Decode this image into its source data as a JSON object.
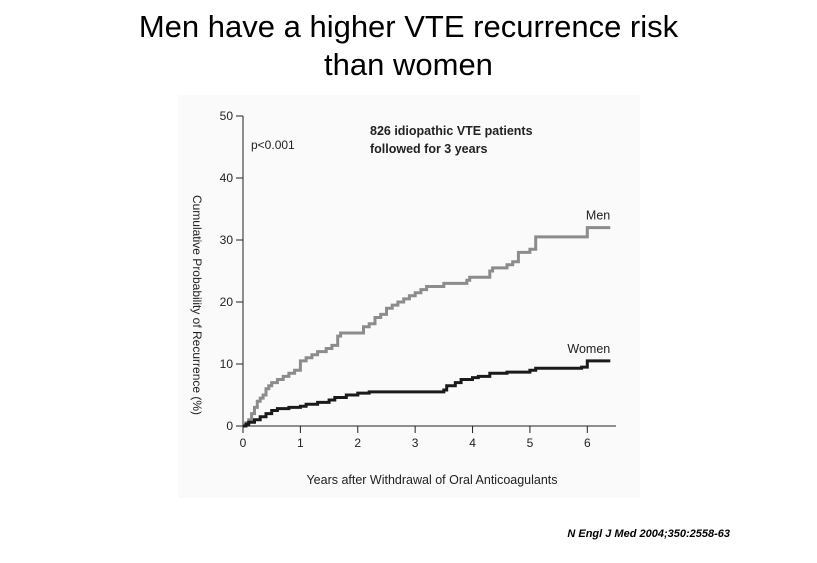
{
  "slide": {
    "title_line1": "Men have a higher VTE recurrence risk",
    "title_line2": "than women",
    "citation": "N Engl J Med 2004;350:2558-63"
  },
  "chart_data": {
    "type": "line",
    "step": true,
    "ylabel": "Cumulative Probability of Recurrence (%)",
    "xlabel": "Years after Withdrawal of Oral Anticoagulants",
    "xlim": [
      0,
      6.5
    ],
    "ylim": [
      0,
      50
    ],
    "xticks": [
      0,
      1,
      2,
      3,
      4,
      5,
      6
    ],
    "yticks": [
      0,
      10,
      20,
      30,
      40,
      50
    ],
    "grid": false,
    "annotations": {
      "pvalue": "p<0.001",
      "note_line1": "826 idiopathic VTE patients",
      "note_line2": "followed for 3 years"
    },
    "series": [
      {
        "name": "Men",
        "color": "#8c8c8c",
        "x": [
          0,
          0.05,
          0.1,
          0.15,
          0.2,
          0.25,
          0.3,
          0.35,
          0.4,
          0.45,
          0.5,
          0.6,
          0.7,
          0.8,
          0.9,
          1.0,
          1.1,
          1.2,
          1.3,
          1.45,
          1.55,
          1.65,
          1.7,
          2.0,
          2.1,
          2.2,
          2.3,
          2.4,
          2.5,
          2.6,
          2.7,
          2.8,
          2.9,
          3.0,
          3.1,
          3.2,
          3.5,
          3.55,
          3.9,
          3.95,
          4.3,
          4.35,
          4.6,
          4.7,
          4.8,
          5.0,
          5.1,
          5.9,
          6.0,
          6.4
        ],
        "y": [
          0,
          0.5,
          1,
          2,
          3,
          4,
          4.5,
          5,
          6,
          6.5,
          7,
          7.5,
          8,
          8.5,
          9,
          10.5,
          11,
          11.5,
          12,
          12.5,
          13,
          14.5,
          15,
          15,
          16,
          16.5,
          17.5,
          18,
          19,
          19.5,
          20,
          20.5,
          21,
          21.5,
          22,
          22.5,
          23,
          23,
          23.5,
          24,
          25,
          25.5,
          26,
          26.5,
          28,
          28.5,
          30.5,
          30.5,
          32,
          32
        ]
      },
      {
        "name": "Women",
        "color": "#1a1a1a",
        "x": [
          0,
          0.05,
          0.1,
          0.2,
          0.3,
          0.4,
          0.5,
          0.6,
          0.8,
          1.0,
          1.1,
          1.3,
          1.5,
          1.6,
          1.8,
          2.0,
          2.2,
          3.0,
          3.5,
          3.55,
          3.7,
          3.8,
          4.0,
          4.1,
          4.3,
          4.6,
          5.0,
          5.1,
          5.9,
          6.0,
          6.4
        ],
        "y": [
          0,
          0.3,
          0.6,
          1,
          1.5,
          2,
          2.5,
          2.8,
          3,
          3.2,
          3.5,
          3.8,
          4.2,
          4.6,
          5,
          5.3,
          5.5,
          5.5,
          5.8,
          6.5,
          7,
          7.5,
          7.8,
          8,
          8.5,
          8.7,
          9,
          9.3,
          9.5,
          10.5,
          10.5
        ]
      }
    ]
  }
}
